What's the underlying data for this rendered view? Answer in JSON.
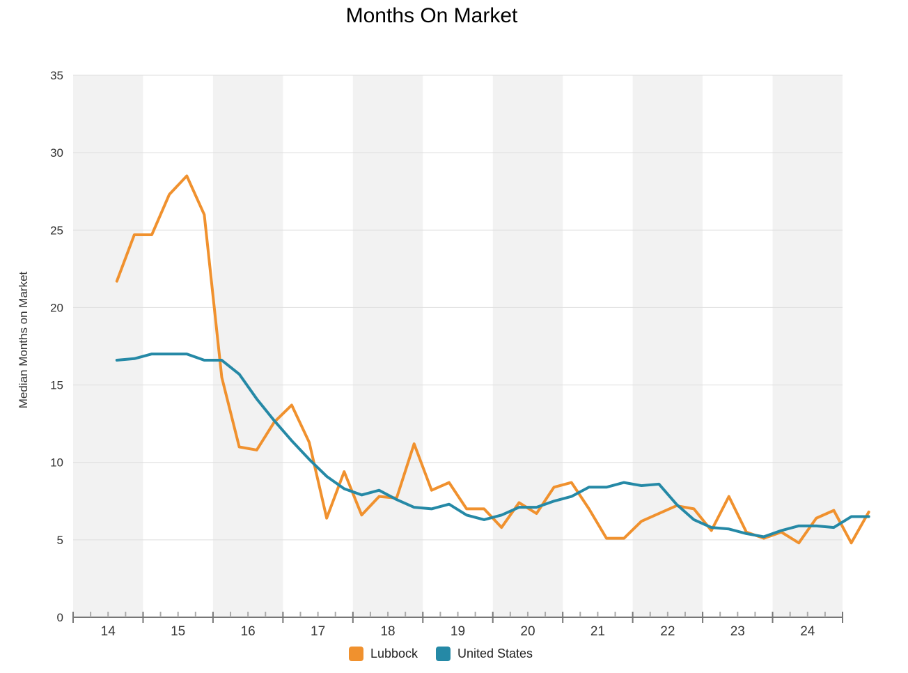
{
  "chart_data": {
    "type": "line",
    "title": "Months On Market",
    "ylabel": "Median Months on Market",
    "xlabel": "",
    "ylim": [
      0,
      35
    ],
    "yticks": [
      0,
      5,
      10,
      15,
      20,
      25,
      30,
      35
    ],
    "x_categories": [
      "14",
      "15",
      "16",
      "17",
      "18",
      "19",
      "20",
      "21",
      "22",
      "23",
      "24"
    ],
    "grid": true,
    "alternating_year_bands": true,
    "legend_position": "bottom",
    "x": [
      14.125,
      14.375,
      14.625,
      14.875,
      15.125,
      15.375,
      15.625,
      15.875,
      16.125,
      16.375,
      16.625,
      16.875,
      17.125,
      17.375,
      17.625,
      17.875,
      18.125,
      18.375,
      18.625,
      18.875,
      19.125,
      19.375,
      19.625,
      19.875,
      20.125,
      20.375,
      20.625,
      20.875,
      21.125,
      21.375,
      21.625,
      21.875,
      22.125,
      22.375,
      22.625,
      22.875,
      23.125,
      23.375,
      23.625,
      23.875,
      24.125,
      24.375,
      24.625,
      24.875
    ],
    "series": [
      {
        "name": "Lubbock",
        "color": "#f0912e",
        "values": [
          21.7,
          24.7,
          24.7,
          27.3,
          28.5,
          26.0,
          15.5,
          11.0,
          10.8,
          12.6,
          13.7,
          11.3,
          6.4,
          9.4,
          6.6,
          7.8,
          7.7,
          11.2,
          8.2,
          8.7,
          7.0,
          7.0,
          5.8,
          7.4,
          6.7,
          8.4,
          8.7,
          7.0,
          5.1,
          5.1,
          6.2,
          6.7,
          7.2,
          7.0,
          5.6,
          7.8,
          5.5,
          5.1,
          5.5,
          4.8,
          6.4,
          6.9,
          4.8,
          6.8
        ]
      },
      {
        "name": "United States",
        "color": "#2589a6",
        "values": [
          16.6,
          16.7,
          17.0,
          17.0,
          17.0,
          16.6,
          16.6,
          15.7,
          14.1,
          12.7,
          11.4,
          10.2,
          9.1,
          8.3,
          7.9,
          8.2,
          7.6,
          7.1,
          7.0,
          7.3,
          6.6,
          6.3,
          6.6,
          7.1,
          7.1,
          7.5,
          7.8,
          8.4,
          8.4,
          8.7,
          8.5,
          8.6,
          7.3,
          6.3,
          5.8,
          5.7,
          5.4,
          5.2,
          5.6,
          5.9,
          5.9,
          5.8,
          6.5,
          6.5
        ]
      }
    ]
  },
  "legend": {
    "lubbock_label": "Lubbock",
    "us_label": "United States"
  }
}
